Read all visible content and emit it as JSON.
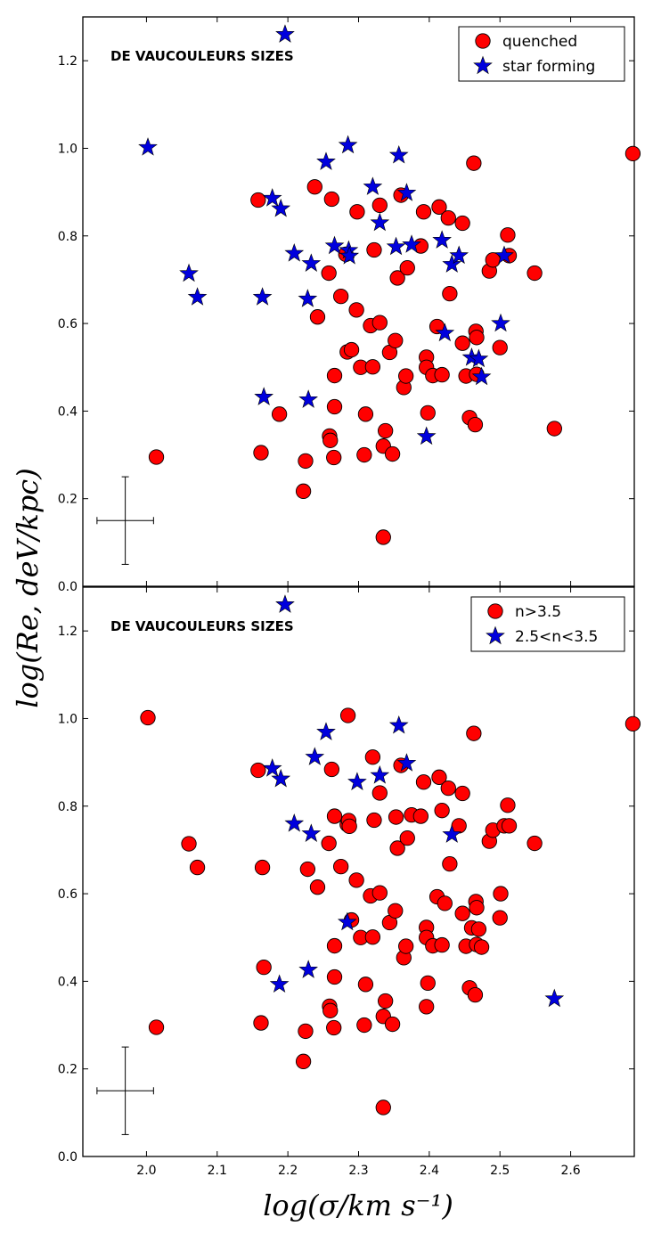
{
  "chart_data": [
    {
      "type": "scatter",
      "title": "DE VAUCOULEURS SIZES",
      "xlabel": "log(σ/km s⁻¹)",
      "ylabel": "log(Re, deV/kpc)",
      "xlim": [
        1.91,
        2.69
      ],
      "ylim": [
        0.0,
        1.3
      ],
      "xticks": [
        "2.0",
        "2.1",
        "2.2",
        "2.3",
        "2.4",
        "2.5",
        "2.6"
      ],
      "yticks": [
        "0.0",
        "0.2",
        "0.4",
        "0.6",
        "0.8",
        "1.0",
        "1.2"
      ],
      "show_xtick_labels": false,
      "legend_position": "top-right",
      "error_bar": {
        "x": 1.97,
        "y": 0.15,
        "xerr": 0.04,
        "yerr": 0.1
      },
      "series": [
        {
          "name": "quenched",
          "marker": "circle",
          "color": "#ff0000",
          "points": [
            [
              2.014,
              0.295
            ],
            [
              2.158,
              0.882
            ],
            [
              2.162,
              0.305
            ],
            [
              2.188,
              0.393
            ],
            [
              2.222,
              0.217
            ],
            [
              2.225,
              0.286
            ],
            [
              2.238,
              0.912
            ],
            [
              2.242,
              0.615
            ],
            [
              2.258,
              0.715
            ],
            [
              2.259,
              0.343
            ],
            [
              2.26,
              0.333
            ],
            [
              2.262,
              0.884
            ],
            [
              2.265,
              0.294
            ],
            [
              2.266,
              0.481
            ],
            [
              2.266,
              0.41
            ],
            [
              2.275,
              0.662
            ],
            [
              2.282,
              0.758
            ],
            [
              2.284,
              0.535
            ],
            [
              2.29,
              0.54
            ],
            [
              2.297,
              0.631
            ],
            [
              2.298,
              0.855
            ],
            [
              2.303,
              0.5
            ],
            [
              2.308,
              0.3
            ],
            [
              2.31,
              0.393
            ],
            [
              2.317,
              0.595
            ],
            [
              2.32,
              0.501
            ],
            [
              2.322,
              0.768
            ],
            [
              2.33,
              0.602
            ],
            [
              2.33,
              0.87
            ],
            [
              2.335,
              0.112
            ],
            [
              2.335,
              0.32
            ],
            [
              2.338,
              0.355
            ],
            [
              2.344,
              0.534
            ],
            [
              2.348,
              0.302
            ],
            [
              2.352,
              0.561
            ],
            [
              2.355,
              0.704
            ],
            [
              2.36,
              0.893
            ],
            [
              2.364,
              0.454
            ],
            [
              2.367,
              0.48
            ],
            [
              2.369,
              0.727
            ],
            [
              2.388,
              0.777
            ],
            [
              2.392,
              0.855
            ],
            [
              2.396,
              0.523
            ],
            [
              2.396,
              0.5
            ],
            [
              2.398,
              0.396
            ],
            [
              2.405,
              0.481
            ],
            [
              2.411,
              0.593
            ],
            [
              2.414,
              0.866
            ],
            [
              2.418,
              0.483
            ],
            [
              2.427,
              0.841
            ],
            [
              2.429,
              0.668
            ],
            [
              2.447,
              0.555
            ],
            [
              2.447,
              0.829
            ],
            [
              2.452,
              0.48
            ],
            [
              2.457,
              0.385
            ],
            [
              2.463,
              0.966
            ],
            [
              2.465,
              0.369
            ],
            [
              2.466,
              0.582
            ],
            [
              2.467,
              0.568
            ],
            [
              2.467,
              0.484
            ],
            [
              2.485,
              0.72
            ],
            [
              2.49,
              0.745
            ],
            [
              2.5,
              0.545
            ],
            [
              2.511,
              0.802
            ],
            [
              2.513,
              0.755
            ],
            [
              2.549,
              0.715
            ],
            [
              2.577,
              0.36
            ],
            [
              2.688,
              0.988
            ]
          ]
        },
        {
          "name": "star forming",
          "marker": "star",
          "color": "#0000dd",
          "points": [
            [
              2.002,
              1.002
            ],
            [
              2.06,
              0.714
            ],
            [
              2.072,
              0.66
            ],
            [
              2.164,
              0.66
            ],
            [
              2.166,
              0.432
            ],
            [
              2.178,
              0.886
            ],
            [
              2.19,
              0.862
            ],
            [
              2.196,
              1.26
            ],
            [
              2.209,
              0.76
            ],
            [
              2.228,
              0.656
            ],
            [
              2.229,
              0.426
            ],
            [
              2.233,
              0.737
            ],
            [
              2.254,
              0.969
            ],
            [
              2.266,
              0.777
            ],
            [
              2.285,
              1.007
            ],
            [
              2.286,
              0.767
            ],
            [
              2.287,
              0.754
            ],
            [
              2.32,
              0.912
            ],
            [
              2.33,
              0.83
            ],
            [
              2.353,
              0.775
            ],
            [
              2.357,
              0.984
            ],
            [
              2.368,
              0.898
            ],
            [
              2.375,
              0.78
            ],
            [
              2.396,
              0.342
            ],
            [
              2.418,
              0.79
            ],
            [
              2.422,
              0.578
            ],
            [
              2.432,
              0.735
            ],
            [
              2.442,
              0.755
            ],
            [
              2.46,
              0.522
            ],
            [
              2.47,
              0.519
            ],
            [
              2.474,
              0.478
            ],
            [
              2.501,
              0.6
            ],
            [
              2.506,
              0.755
            ]
          ]
        }
      ]
    },
    {
      "type": "scatter",
      "title": "DE VAUCOULEURS SIZES",
      "xlabel": "log(σ/km s⁻¹)",
      "ylabel": "log(Re, deV/kpc)",
      "xlim": [
        1.91,
        2.69
      ],
      "ylim": [
        0.0,
        1.3
      ],
      "xticks": [
        "2.0",
        "2.1",
        "2.2",
        "2.3",
        "2.4",
        "2.5",
        "2.6"
      ],
      "yticks": [
        "0.0",
        "0.2",
        "0.4",
        "0.6",
        "0.8",
        "1.0",
        "1.2"
      ],
      "show_xtick_labels": true,
      "legend_position": "top-right",
      "error_bar": {
        "x": 1.97,
        "y": 0.15,
        "xerr": 0.04,
        "yerr": 0.1
      },
      "series": [
        {
          "name": "n>3.5",
          "marker": "circle",
          "color": "#ff0000",
          "points": [
            [
              2.002,
              1.002
            ],
            [
              2.014,
              0.295
            ],
            [
              2.06,
              0.714
            ],
            [
              2.072,
              0.66
            ],
            [
              2.158,
              0.882
            ],
            [
              2.162,
              0.305
            ],
            [
              2.164,
              0.66
            ],
            [
              2.166,
              0.432
            ],
            [
              2.222,
              0.217
            ],
            [
              2.225,
              0.286
            ],
            [
              2.228,
              0.656
            ],
            [
              2.242,
              0.615
            ],
            [
              2.258,
              0.715
            ],
            [
              2.259,
              0.343
            ],
            [
              2.26,
              0.333
            ],
            [
              2.262,
              0.884
            ],
            [
              2.265,
              0.294
            ],
            [
              2.266,
              0.481
            ],
            [
              2.266,
              0.41
            ],
            [
              2.266,
              0.777
            ],
            [
              2.275,
              0.662
            ],
            [
              2.284,
              0.758
            ],
            [
              2.286,
              0.767
            ],
            [
              2.287,
              0.754
            ],
            [
              2.285,
              1.007
            ],
            [
              2.29,
              0.54
            ],
            [
              2.297,
              0.631
            ],
            [
              2.303,
              0.5
            ],
            [
              2.308,
              0.3
            ],
            [
              2.31,
              0.393
            ],
            [
              2.317,
              0.595
            ],
            [
              2.32,
              0.501
            ],
            [
              2.32,
              0.912
            ],
            [
              2.322,
              0.768
            ],
            [
              2.33,
              0.602
            ],
            [
              2.33,
              0.83
            ],
            [
              2.335,
              0.112
            ],
            [
              2.335,
              0.32
            ],
            [
              2.338,
              0.355
            ],
            [
              2.344,
              0.534
            ],
            [
              2.348,
              0.302
            ],
            [
              2.352,
              0.561
            ],
            [
              2.353,
              0.775
            ],
            [
              2.355,
              0.704
            ],
            [
              2.36,
              0.893
            ],
            [
              2.364,
              0.454
            ],
            [
              2.367,
              0.48
            ],
            [
              2.369,
              0.727
            ],
            [
              2.375,
              0.78
            ],
            [
              2.388,
              0.777
            ],
            [
              2.392,
              0.855
            ],
            [
              2.396,
              0.523
            ],
            [
              2.396,
              0.5
            ],
            [
              2.396,
              0.342
            ],
            [
              2.398,
              0.396
            ],
            [
              2.405,
              0.481
            ],
            [
              2.411,
              0.593
            ],
            [
              2.414,
              0.866
            ],
            [
              2.418,
              0.483
            ],
            [
              2.418,
              0.79
            ],
            [
              2.422,
              0.578
            ],
            [
              2.427,
              0.841
            ],
            [
              2.429,
              0.668
            ],
            [
              2.442,
              0.755
            ],
            [
              2.447,
              0.555
            ],
            [
              2.447,
              0.829
            ],
            [
              2.452,
              0.48
            ],
            [
              2.457,
              0.385
            ],
            [
              2.46,
              0.522
            ],
            [
              2.463,
              0.966
            ],
            [
              2.465,
              0.369
            ],
            [
              2.466,
              0.582
            ],
            [
              2.467,
              0.568
            ],
            [
              2.467,
              0.484
            ],
            [
              2.47,
              0.519
            ],
            [
              2.474,
              0.478
            ],
            [
              2.485,
              0.72
            ],
            [
              2.49,
              0.745
            ],
            [
              2.5,
              0.545
            ],
            [
              2.501,
              0.6
            ],
            [
              2.506,
              0.755
            ],
            [
              2.511,
              0.802
            ],
            [
              2.513,
              0.755
            ],
            [
              2.549,
              0.715
            ],
            [
              2.688,
              0.988
            ]
          ]
        },
        {
          "name": "2.5<n<3.5",
          "marker": "star",
          "color": "#0000dd",
          "points": [
            [
              2.178,
              0.886
            ],
            [
              2.188,
              0.393
            ],
            [
              2.19,
              0.862
            ],
            [
              2.196,
              1.26
            ],
            [
              2.209,
              0.76
            ],
            [
              2.229,
              0.426
            ],
            [
              2.233,
              0.737
            ],
            [
              2.238,
              0.912
            ],
            [
              2.254,
              0.969
            ],
            [
              2.284,
              0.535
            ],
            [
              2.298,
              0.855
            ],
            [
              2.33,
              0.87
            ],
            [
              2.357,
              0.984
            ],
            [
              2.368,
              0.898
            ],
            [
              2.432,
              0.735
            ],
            [
              2.577,
              0.36
            ]
          ]
        }
      ]
    }
  ]
}
